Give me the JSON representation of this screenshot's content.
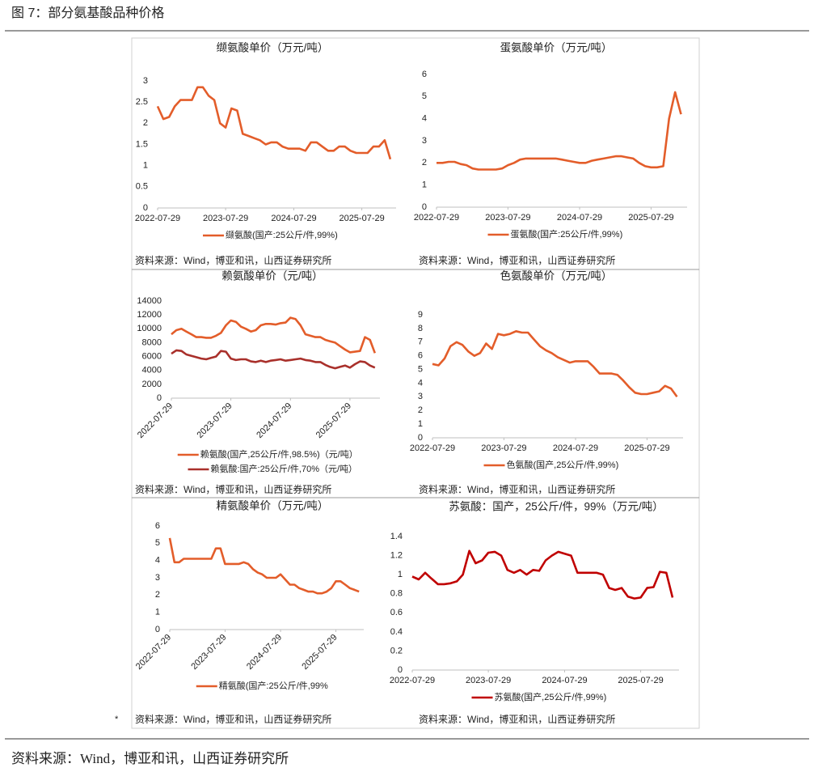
{
  "header": {
    "title": "图 7：部分氨基酸品种价格"
  },
  "footer": {
    "source": "资料来源：Wind，博亚和讯，山西证券研究所",
    "note_mark": "*"
  },
  "chart_data": [
    {
      "type": "line",
      "title": "缬氨酸单价（万元/吨）",
      "x": [
        "2022-07-29",
        "2022-08-29",
        "2022-09-29",
        "2022-10-29",
        "2022-11-29",
        "2022-12-29",
        "2023-01-29",
        "2023-02-28",
        "2023-03-29",
        "2023-04-29",
        "2023-05-29",
        "2023-06-29",
        "2023-07-29",
        "2023-08-29",
        "2023-09-29",
        "2023-10-29",
        "2023-11-29",
        "2023-12-29",
        "2024-01-29",
        "2024-02-29",
        "2024-03-29",
        "2024-04-29",
        "2024-05-29",
        "2024-06-29",
        "2024-07-29",
        "2024-08-29",
        "2024-09-29",
        "2024-10-29",
        "2024-11-29",
        "2024-12-29",
        "2025-01-29",
        "2025-02-28",
        "2025-03-29",
        "2025-04-29",
        "2025-05-29",
        "2025-06-29",
        "2025-07-29",
        "2025-08-29",
        "2025-09-29",
        "2025-10-29",
        "2025-11-29",
        "2025-12-29"
      ],
      "xlim": [
        "2022-07-29",
        "2026-01-29"
      ],
      "xticks": [
        "2022-07-29",
        "2023-07-29",
        "2024-07-29",
        "2025-07-29"
      ],
      "ylim": [
        0,
        3
      ],
      "yticks": [
        0,
        0.5,
        1,
        1.5,
        2,
        2.5,
        3
      ],
      "series": [
        {
          "name": "缬氨酸(国产:25公斤/件,99%)",
          "color": "#e35d2a",
          "values": [
            2.4,
            2.1,
            2.15,
            2.4,
            2.55,
            2.55,
            2.55,
            2.85,
            2.85,
            2.65,
            2.55,
            2.0,
            1.9,
            2.35,
            2.3,
            1.75,
            1.7,
            1.65,
            1.6,
            1.5,
            1.55,
            1.55,
            1.45,
            1.4,
            1.4,
            1.4,
            1.35,
            1.55,
            1.55,
            1.45,
            1.35,
            1.35,
            1.45,
            1.45,
            1.35,
            1.3,
            1.3,
            1.3,
            1.45,
            1.45,
            1.6,
            1.15
          ]
        }
      ],
      "source": "资料来源：Wind，博亚和讯，山西证券研究所"
    },
    {
      "type": "line",
      "title": "蛋氨酸单价（万元/吨）",
      "x": [
        "2022-07-29",
        "2022-08-29",
        "2022-09-29",
        "2022-10-29",
        "2022-11-29",
        "2022-12-29",
        "2023-01-29",
        "2023-02-28",
        "2023-03-29",
        "2023-04-29",
        "2023-05-29",
        "2023-06-29",
        "2023-07-29",
        "2023-08-29",
        "2023-09-29",
        "2023-10-29",
        "2023-11-29",
        "2023-12-29",
        "2024-01-29",
        "2024-02-29",
        "2024-03-29",
        "2024-04-29",
        "2024-05-29",
        "2024-06-29",
        "2024-07-29",
        "2024-08-29",
        "2024-09-29",
        "2024-10-29",
        "2024-11-29",
        "2024-12-29",
        "2025-01-29",
        "2025-02-28",
        "2025-03-29",
        "2025-04-29",
        "2025-05-29",
        "2025-06-29",
        "2025-07-29",
        "2025-08-29",
        "2025-09-29",
        "2025-10-29",
        "2025-11-29",
        "2025-12-29"
      ],
      "xlim": [
        "2022-07-29",
        "2026-01-29"
      ],
      "xticks": [
        "2022-07-29",
        "2023-07-29",
        "2024-07-29",
        "2025-07-29"
      ],
      "ylim": [
        0,
        6
      ],
      "yticks": [
        0,
        1,
        2,
        3,
        4,
        5,
        6
      ],
      "series": [
        {
          "name": "蛋氨酸(国产:25公斤/件,99%)",
          "color": "#e35d2a",
          "values": [
            2.0,
            2.0,
            2.05,
            2.05,
            1.95,
            1.9,
            1.75,
            1.7,
            1.7,
            1.7,
            1.7,
            1.75,
            1.9,
            2.0,
            2.15,
            2.2,
            2.2,
            2.2,
            2.2,
            2.2,
            2.2,
            2.15,
            2.1,
            2.05,
            2.0,
            2.0,
            2.1,
            2.15,
            2.2,
            2.25,
            2.3,
            2.3,
            2.25,
            2.2,
            2.0,
            1.85,
            1.8,
            1.8,
            1.85,
            4.0,
            5.2,
            4.2
          ]
        }
      ],
      "source": "资料来源：Wind，博亚和讯，山西证券研究所"
    },
    {
      "type": "line",
      "title": "赖氨酸单价（元/吨）",
      "x_tick_rotation": -45,
      "x": [
        "2022-07-29",
        "2022-08-29",
        "2022-09-29",
        "2022-10-29",
        "2022-11-29",
        "2022-12-29",
        "2023-01-29",
        "2023-02-28",
        "2023-03-29",
        "2023-04-29",
        "2023-05-29",
        "2023-06-29",
        "2023-07-29",
        "2023-08-29",
        "2023-09-29",
        "2023-10-29",
        "2023-11-29",
        "2023-12-29",
        "2024-01-29",
        "2024-02-29",
        "2024-03-29",
        "2024-04-29",
        "2024-05-29",
        "2024-06-29",
        "2024-07-29",
        "2024-08-29",
        "2024-09-29",
        "2024-10-29",
        "2024-11-29",
        "2024-12-29",
        "2025-01-29",
        "2025-02-28",
        "2025-03-29",
        "2025-04-29",
        "2025-05-29",
        "2025-06-29",
        "2025-07-29",
        "2025-08-29",
        "2025-09-29",
        "2025-10-29",
        "2025-11-29",
        "2025-12-29"
      ],
      "xlim": [
        "2022-07-29",
        "2026-01-29"
      ],
      "xticks": [
        "2022-07-29",
        "2023-07-29",
        "2024-07-29",
        "2025-07-29"
      ],
      "ylim": [
        0,
        14000
      ],
      "yticks": [
        0,
        2000,
        4000,
        6000,
        8000,
        10000,
        12000,
        14000
      ],
      "series": [
        {
          "name": "赖氨酸(国产,25公斤/件,98.5%)（元/吨）",
          "color": "#e35d2a",
          "values": [
            9200,
            9800,
            10000,
            9600,
            9200,
            8800,
            8800,
            8700,
            8700,
            9000,
            9400,
            10500,
            11200,
            11000,
            10300,
            10000,
            9600,
            9800,
            10500,
            10700,
            10700,
            10600,
            10800,
            10900,
            11600,
            11400,
            10500,
            9200,
            9000,
            8800,
            8800,
            8400,
            8200,
            8000,
            7500,
            7000,
            6600,
            6700,
            6800,
            8800,
            8400,
            6500
          ]
        },
        {
          "name": "赖氨酸:国产:25公斤/件,70%（元/吨）",
          "color": "#a9302b",
          "values": [
            6400,
            6900,
            6800,
            6300,
            6100,
            5900,
            5700,
            5600,
            5800,
            6000,
            6800,
            6700,
            5700,
            5500,
            5600,
            5600,
            5300,
            5200,
            5400,
            5200,
            5400,
            5500,
            5600,
            5400,
            5500,
            5600,
            5700,
            5500,
            5400,
            5200,
            5200,
            4800,
            4500,
            4300,
            4500,
            4700,
            4400,
            4900,
            5300,
            5200,
            4700,
            4400
          ]
        }
      ],
      "source": "资料来源：Wind，博亚和讯，山西证券研究所"
    },
    {
      "type": "line",
      "title": "色氨酸单价（万元/吨）",
      "x": [
        "2022-07-29",
        "2022-08-29",
        "2022-09-29",
        "2022-10-29",
        "2022-11-29",
        "2022-12-29",
        "2023-01-29",
        "2023-02-28",
        "2023-03-29",
        "2023-04-29",
        "2023-05-29",
        "2023-06-29",
        "2023-07-29",
        "2023-08-29",
        "2023-09-29",
        "2023-10-29",
        "2023-11-29",
        "2023-12-29",
        "2024-01-29",
        "2024-02-29",
        "2024-03-29",
        "2024-04-29",
        "2024-05-29",
        "2024-06-29",
        "2024-07-29",
        "2024-08-29",
        "2024-09-29",
        "2024-10-29",
        "2024-11-29",
        "2024-12-29",
        "2025-01-29",
        "2025-02-28",
        "2025-03-29",
        "2025-04-29",
        "2025-05-29",
        "2025-06-29",
        "2025-07-29",
        "2025-08-29",
        "2025-09-29",
        "2025-10-29",
        "2025-11-29",
        "2025-12-29"
      ],
      "xlim": [
        "2022-07-29",
        "2026-01-29"
      ],
      "xticks": [
        "2022-07-29",
        "2023-07-29",
        "2024-07-29",
        "2025-07-29"
      ],
      "ylim": [
        0,
        9
      ],
      "yticks": [
        0,
        1,
        2,
        3,
        4,
        5,
        6,
        7,
        8,
        9
      ],
      "series": [
        {
          "name": "色氨酸(国产,25公斤/件,99%)",
          "color": "#e35d2a",
          "values": [
            5.4,
            5.3,
            5.8,
            6.7,
            7.0,
            6.8,
            6.3,
            6.0,
            6.2,
            6.9,
            6.5,
            7.6,
            7.5,
            7.6,
            7.8,
            7.7,
            7.7,
            7.2,
            6.7,
            6.4,
            6.2,
            5.9,
            5.7,
            5.5,
            5.6,
            5.6,
            5.6,
            5.2,
            4.7,
            4.7,
            4.7,
            4.6,
            4.2,
            3.7,
            3.3,
            3.2,
            3.2,
            3.3,
            3.4,
            3.8,
            3.6,
            3.0
          ]
        }
      ],
      "source": "资料来源：Wind，博亚和讯，山西证券研究所"
    },
    {
      "type": "line",
      "title": "精氨酸单价（万元/吨）",
      "x_tick_rotation": -45,
      "x": [
        "2022-07-29",
        "2022-08-29",
        "2022-09-29",
        "2022-10-29",
        "2022-11-29",
        "2022-12-29",
        "2023-01-29",
        "2023-02-28",
        "2023-03-29",
        "2023-04-29",
        "2023-05-29",
        "2023-06-29",
        "2023-07-29",
        "2023-08-29",
        "2023-09-29",
        "2023-10-29",
        "2023-11-29",
        "2023-12-29",
        "2024-01-29",
        "2024-02-29",
        "2024-03-29",
        "2024-04-29",
        "2024-05-29",
        "2024-06-29",
        "2024-07-29",
        "2024-08-29",
        "2024-09-29",
        "2024-10-29",
        "2024-11-29",
        "2024-12-29",
        "2025-01-29",
        "2025-02-28",
        "2025-03-29",
        "2025-04-29",
        "2025-05-29",
        "2025-06-29",
        "2025-07-29",
        "2025-08-29",
        "2025-09-29",
        "2025-10-29",
        "2025-11-29",
        "2025-12-29"
      ],
      "xlim": [
        "2022-07-29",
        "2026-01-29"
      ],
      "xticks": [
        "2022-07-29",
        "2023-07-29",
        "2024-07-29",
        "2025-07-29"
      ],
      "ylim": [
        0,
        6
      ],
      "yticks": [
        0,
        1,
        2,
        3,
        4,
        5,
        6
      ],
      "series": [
        {
          "name": "精氨酸(国产:25公斤/件,99%",
          "color": "#e35d2a",
          "values": [
            5.3,
            3.9,
            3.9,
            4.1,
            4.1,
            4.1,
            4.1,
            4.1,
            4.1,
            4.1,
            4.7,
            4.7,
            3.8,
            3.8,
            3.8,
            3.8,
            3.9,
            3.8,
            3.5,
            3.3,
            3.2,
            3.0,
            3.0,
            3.0,
            3.2,
            2.9,
            2.6,
            2.6,
            2.4,
            2.3,
            2.2,
            2.2,
            2.1,
            2.1,
            2.2,
            2.4,
            2.8,
            2.8,
            2.6,
            2.4,
            2.3,
            2.2
          ]
        }
      ],
      "source": "资料来源：Wind，博亚和讯，山西证券研究所"
    },
    {
      "type": "line",
      "title": "苏氨酸：国产，25公斤/件，99%（万元/吨）",
      "x": [
        "2022-07-29",
        "2022-08-29",
        "2022-09-29",
        "2022-10-29",
        "2022-11-29",
        "2022-12-29",
        "2023-01-29",
        "2023-02-28",
        "2023-03-29",
        "2023-04-29",
        "2023-05-29",
        "2023-06-29",
        "2023-07-29",
        "2023-08-29",
        "2023-09-29",
        "2023-10-29",
        "2023-11-29",
        "2023-12-29",
        "2024-01-29",
        "2024-02-29",
        "2024-03-29",
        "2024-04-29",
        "2024-05-29",
        "2024-06-29",
        "2024-07-29",
        "2024-08-29",
        "2024-09-29",
        "2024-10-29",
        "2024-11-29",
        "2024-12-29",
        "2025-01-29",
        "2025-02-28",
        "2025-03-29",
        "2025-04-29",
        "2025-05-29",
        "2025-06-29",
        "2025-07-29",
        "2025-08-29",
        "2025-09-29",
        "2025-10-29",
        "2025-11-29",
        "2025-12-29"
      ],
      "xlim": [
        "2022-07-29",
        "2026-01-29"
      ],
      "xticks": [
        "2022-07-29",
        "2023-07-29",
        "2024-07-29",
        "2025-07-29"
      ],
      "ylim": [
        0,
        1.4
      ],
      "yticks": [
        0,
        0.2,
        0.4,
        0.6,
        0.8,
        1,
        1.2,
        1.4
      ],
      "series": [
        {
          "name": "苏氨酸(国产,25公斤/件,99%)",
          "color": "#c00000",
          "values": [
            0.98,
            0.95,
            1.02,
            0.96,
            0.9,
            0.9,
            0.91,
            0.93,
            1.0,
            1.25,
            1.12,
            1.15,
            1.23,
            1.24,
            1.2,
            1.05,
            1.02,
            1.05,
            1.0,
            1.05,
            1.04,
            1.15,
            1.2,
            1.24,
            1.22,
            1.2,
            1.02,
            1.02,
            1.02,
            1.02,
            1.0,
            0.86,
            0.84,
            0.86,
            0.77,
            0.75,
            0.76,
            0.86,
            0.87,
            1.03,
            1.02,
            0.76
          ]
        }
      ],
      "source": "资料来源：Wind，博亚和讯，山西证券研究所"
    }
  ]
}
